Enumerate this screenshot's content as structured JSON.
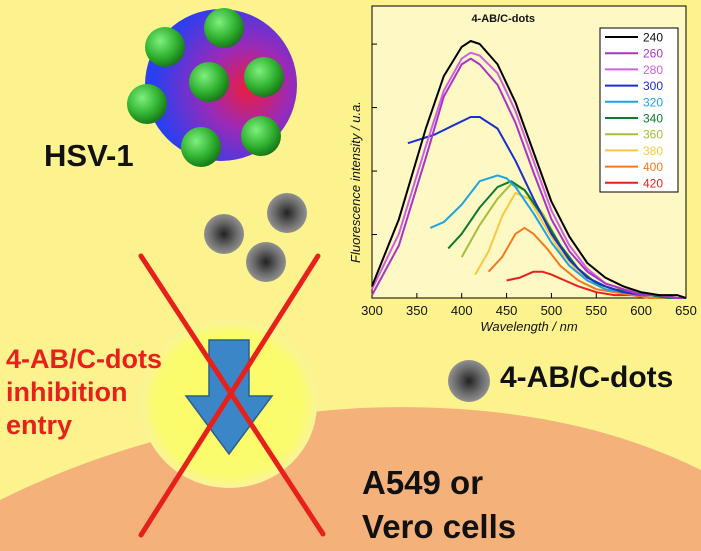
{
  "labels": {
    "virus": "HSV-1",
    "inhibition": [
      "4-AB/C-dots",
      "inhibition",
      "entry"
    ],
    "cells": [
      "A549 or",
      "Vero cells"
    ],
    "legend_dot": "4-AB/C-dots"
  },
  "colors": {
    "background": "#fcf38f",
    "cell": "#f4b27a",
    "glow": "#fbfb6a",
    "arrow": "#3a86c6",
    "cross": "#e8201c",
    "virus_particle": "#2fb02f",
    "virus_core_outer": "#2a3ff0",
    "virus_core_inner": "#ee1c3c"
  },
  "icons": {
    "virus": "hsv-virus-icon",
    "dot": "c-dot-icon",
    "arrow": "down-arrow-icon",
    "cross": "red-x-icon"
  },
  "chart_data": {
    "type": "line",
    "title": "",
    "xlabel": "Wavelength / nm",
    "ylabel": "Fluorescence intensity / u.a.",
    "xlim": [
      300,
      650
    ],
    "ylim": [
      0,
      1
    ],
    "xticks": [
      300,
      350,
      400,
      450,
      500,
      550,
      600,
      650
    ],
    "legend_title": "4-AB/C-dots",
    "legend_position": "top-right",
    "series": [
      {
        "name": "240",
        "color": "#000000",
        "x": [
          300,
          330,
          360,
          380,
          400,
          410,
          420,
          440,
          460,
          480,
          500,
          520,
          540,
          560,
          580,
          600,
          620,
          640,
          650
        ],
        "y": [
          0.04,
          0.27,
          0.58,
          0.76,
          0.86,
          0.88,
          0.87,
          0.8,
          0.67,
          0.5,
          0.33,
          0.21,
          0.12,
          0.07,
          0.04,
          0.02,
          0.01,
          0.01,
          0.0
        ]
      },
      {
        "name": "260",
        "color": "#a835c8",
        "x": [
          300,
          330,
          360,
          380,
          400,
          410,
          420,
          440,
          460,
          480,
          500,
          520,
          540,
          560,
          580,
          600,
          620,
          640,
          650
        ],
        "y": [
          0.01,
          0.18,
          0.48,
          0.69,
          0.8,
          0.82,
          0.8,
          0.73,
          0.6,
          0.43,
          0.27,
          0.16,
          0.09,
          0.05,
          0.03,
          0.01,
          0.01,
          0.0,
          0.0
        ]
      },
      {
        "name": "280",
        "color": "#d060e0",
        "x": [
          300,
          330,
          360,
          380,
          400,
          410,
          420,
          440,
          460,
          480,
          500,
          520,
          540,
          560,
          580,
          600,
          620,
          640,
          650
        ],
        "y": [
          0.03,
          0.22,
          0.52,
          0.71,
          0.82,
          0.84,
          0.83,
          0.77,
          0.64,
          0.47,
          0.3,
          0.18,
          0.1,
          0.05,
          0.03,
          0.02,
          0.01,
          0.0,
          0.0
        ]
      },
      {
        "name": "300",
        "color": "#1a2fcf",
        "x": [
          340,
          350,
          370,
          390,
          410,
          420,
          440,
          460,
          480,
          500,
          520,
          540,
          560,
          580,
          600,
          620,
          640,
          650
        ],
        "y": [
          0.53,
          0.54,
          0.56,
          0.59,
          0.62,
          0.62,
          0.58,
          0.47,
          0.34,
          0.22,
          0.13,
          0.07,
          0.04,
          0.02,
          0.01,
          0.01,
          0.0,
          0.0
        ]
      },
      {
        "name": "320",
        "color": "#1fa4e0",
        "x": [
          365,
          380,
          400,
          420,
          440,
          450,
          460,
          480,
          500,
          520,
          540,
          560,
          580,
          600,
          620,
          640,
          650
        ],
        "y": [
          0.24,
          0.26,
          0.32,
          0.4,
          0.42,
          0.41,
          0.38,
          0.29,
          0.19,
          0.11,
          0.06,
          0.03,
          0.02,
          0.01,
          0.01,
          0.0,
          0.0
        ]
      },
      {
        "name": "340",
        "color": "#0e7a2e",
        "x": [
          385,
          400,
          420,
          440,
          455,
          470,
          490,
          510,
          530,
          550,
          570,
          590,
          610,
          630,
          650
        ],
        "y": [
          0.17,
          0.22,
          0.31,
          0.38,
          0.4,
          0.37,
          0.28,
          0.18,
          0.1,
          0.05,
          0.03,
          0.02,
          0.01,
          0.0,
          0.0
        ]
      },
      {
        "name": "360",
        "color": "#a3c03a",
        "x": [
          400,
          420,
          440,
          455,
          470,
          490,
          510,
          530,
          550,
          570,
          590,
          610,
          630,
          650
        ],
        "y": [
          0.14,
          0.25,
          0.34,
          0.39,
          0.37,
          0.29,
          0.18,
          0.1,
          0.05,
          0.03,
          0.02,
          0.01,
          0.0,
          0.0
        ]
      },
      {
        "name": "380",
        "color": "#f7c93a",
        "x": [
          415,
          430,
          445,
          460,
          475,
          490,
          510,
          530,
          550,
          570,
          590,
          610,
          630,
          650
        ],
        "y": [
          0.08,
          0.16,
          0.28,
          0.36,
          0.34,
          0.26,
          0.16,
          0.09,
          0.05,
          0.03,
          0.02,
          0.01,
          0.0,
          0.0
        ]
      },
      {
        "name": "400",
        "color": "#f07a20",
        "x": [
          430,
          445,
          460,
          470,
          480,
          495,
          510,
          530,
          550,
          570,
          590,
          610,
          630,
          650
        ],
        "y": [
          0.09,
          0.14,
          0.22,
          0.24,
          0.22,
          0.17,
          0.11,
          0.06,
          0.03,
          0.02,
          0.01,
          0.0,
          0.0,
          0.0
        ]
      },
      {
        "name": "420",
        "color": "#e8201c",
        "x": [
          450,
          465,
          480,
          490,
          500,
          515,
          530,
          550,
          570,
          590,
          610,
          630,
          650
        ],
        "y": [
          0.06,
          0.07,
          0.09,
          0.09,
          0.08,
          0.06,
          0.04,
          0.02,
          0.01,
          0.01,
          0.0,
          0.0,
          0.0
        ]
      }
    ]
  }
}
